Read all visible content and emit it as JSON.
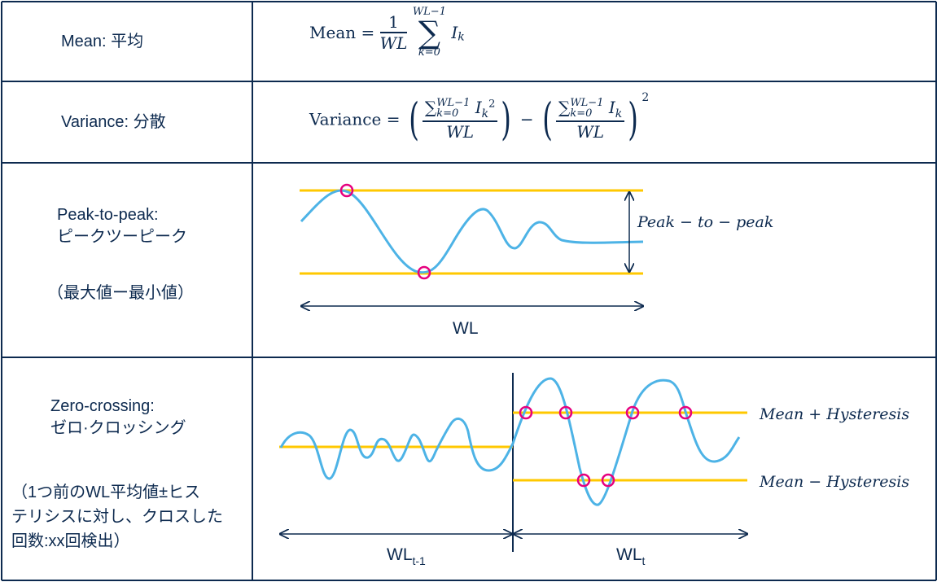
{
  "rows": [
    {
      "label": "Mean: 平均",
      "formula": {
        "lhs": "Mean",
        "eq": "=",
        "num": "1",
        "den": "WL",
        "sum_upper": "WL−1",
        "sum_lower": "k=0",
        "term": "I",
        "sub": "k"
      }
    },
    {
      "label": "Variance: 分散",
      "formula": {
        "lhs": "Variance",
        "eq": "=",
        "sum_upper": "WL−1",
        "sum_lower": "k=0",
        "term": "I",
        "sub": "k",
        "sq": "2",
        "den": "WL",
        "minus": "−"
      }
    },
    {
      "label_lines": [
        "Peak-to-peak:",
        "ピークツーピーク"
      ],
      "note": "（最大値ー最小値）",
      "diagram": {
        "range_label": "Peak − to − peak",
        "window_label": "WL"
      }
    },
    {
      "label_lines": [
        "Zero-crossing:",
        "ゼロ·クロッシング"
      ],
      "note_lines": [
        "（1つ前のWL平均値±ヒス",
        "テリシスに対し、クロスした",
        "回数:xx回検出）"
      ],
      "diagram": {
        "upper_label": "Mean + Hysteresis",
        "lower_label": "Mean − Hysteresis",
        "prev_window": "WL",
        "prev_sub": "t-1",
        "curr_window": "WL",
        "curr_sub": "t"
      }
    }
  ],
  "colors": {
    "border": "#0d2a4f",
    "signal": "#4db3e6",
    "threshold": "#ffc800",
    "marker": "#e6007e"
  }
}
